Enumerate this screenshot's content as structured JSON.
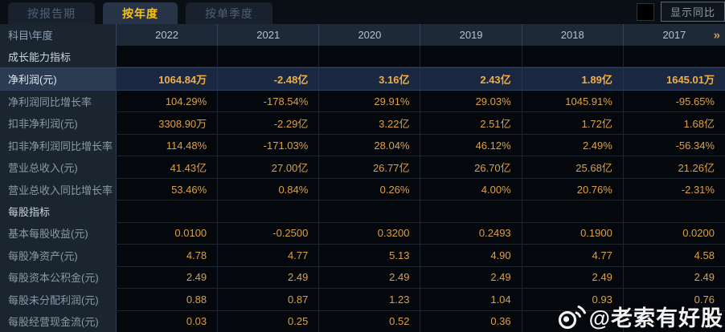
{
  "tabs": [
    {
      "label": "按报告期",
      "active": false
    },
    {
      "label": "按年度",
      "active": true
    },
    {
      "label": "按单季度",
      "active": false
    }
  ],
  "controls": {
    "show_yoy_label": "显示同比",
    "checkbox_checked": false
  },
  "table": {
    "corner_label": "科目\\年度",
    "years": [
      "2022",
      "2021",
      "2020",
      "2019",
      "2018",
      "2017"
    ],
    "more_icon": "»",
    "rows": [
      {
        "type": "section",
        "label": "成长能力指标",
        "values": [
          "",
          "",
          "",
          "",
          "",
          ""
        ]
      },
      {
        "type": "data",
        "highlight": true,
        "label": "净利润(元)",
        "values": [
          "1064.84万",
          "-2.48亿",
          "3.16亿",
          "2.43亿",
          "1.89亿",
          "1645.01万"
        ]
      },
      {
        "type": "data",
        "label": "净利润同比增长率",
        "values": [
          "104.29%",
          "-178.54%",
          "29.91%",
          "29.03%",
          "1045.91%",
          "-95.65%"
        ]
      },
      {
        "type": "data",
        "label": "扣非净利润(元)",
        "values": [
          "3308.90万",
          "-2.29亿",
          "3.22亿",
          "2.51亿",
          "1.72亿",
          "1.68亿"
        ]
      },
      {
        "type": "data",
        "label": "扣非净利润同比增长率",
        "values": [
          "114.48%",
          "-171.03%",
          "28.04%",
          "46.12%",
          "2.49%",
          "-56.34%"
        ]
      },
      {
        "type": "data",
        "label": "营业总收入(元)",
        "values": [
          "41.43亿",
          "27.00亿",
          "26.77亿",
          "26.70亿",
          "25.68亿",
          "21.26亿"
        ]
      },
      {
        "type": "data",
        "label": "营业总收入同比增长率",
        "values": [
          "53.46%",
          "0.84%",
          "0.26%",
          "4.00%",
          "20.76%",
          "-2.31%"
        ]
      },
      {
        "type": "section",
        "label": "每股指标",
        "values": [
          "",
          "",
          "",
          "",
          "",
          ""
        ]
      },
      {
        "type": "data",
        "label": "基本每股收益(元)",
        "values": [
          "0.0100",
          "-0.2500",
          "0.3200",
          "0.2493",
          "0.1900",
          "0.0200"
        ]
      },
      {
        "type": "data",
        "label": "每股净资产(元)",
        "values": [
          "4.78",
          "4.77",
          "5.13",
          "4.90",
          "4.77",
          "4.58"
        ]
      },
      {
        "type": "data",
        "label": "每股资本公积金(元)",
        "values": [
          "2.49",
          "2.49",
          "2.49",
          "2.49",
          "2.49",
          "2.49"
        ]
      },
      {
        "type": "data",
        "label": "每股未分配利润(元)",
        "values": [
          "0.88",
          "0.87",
          "1.23",
          "1.04",
          "0.93",
          "0.76"
        ]
      },
      {
        "type": "data",
        "label": "每股经营现金流(元)",
        "values": [
          "0.03",
          "0.25",
          "0.52",
          "0.36",
          "",
          ""
        ]
      }
    ]
  },
  "watermark": {
    "icon": "weibo-icon",
    "handle": "@老索有好股"
  },
  "colors": {
    "accent_gold": "#dda142",
    "active_tab_text": "#f5c316",
    "highlight_row_bg": "#192840",
    "header_bg": "#1d2937",
    "label_col_bg": "#1b2530"
  }
}
